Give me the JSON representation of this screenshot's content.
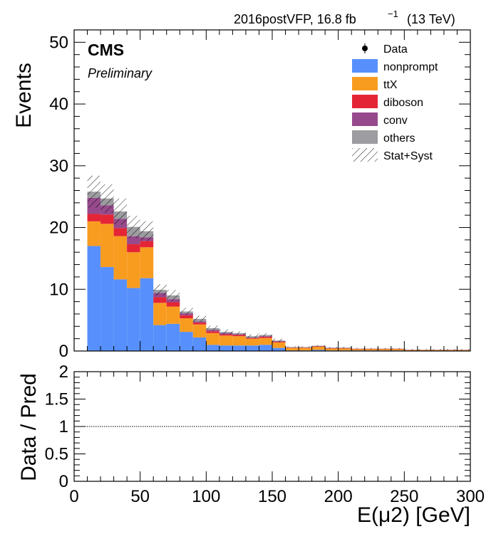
{
  "header": {
    "lumi_label": "2016postVFP, 16.8 fb",
    "lumi_exp": "−1",
    "energy_label": "(13 TeV)"
  },
  "cms_label": "CMS",
  "cms_sublabel": "Preliminary",
  "colors": {
    "nonprompt": "#5790fc",
    "ttX": "#f89c20",
    "diboson": "#e42536",
    "conv": "#964a8b",
    "others": "#9c9ca1"
  },
  "legend": [
    {
      "key": "data",
      "label": "Data",
      "style": "marker"
    },
    {
      "key": "nonprompt",
      "label": "nonprompt",
      "style": "fill"
    },
    {
      "key": "ttX",
      "label": "ttX",
      "style": "fill"
    },
    {
      "key": "diboson",
      "label": "diboson",
      "style": "fill"
    },
    {
      "key": "conv",
      "label": "conv",
      "style": "fill"
    },
    {
      "key": "others",
      "label": "others",
      "style": "fill"
    },
    {
      "key": "unc",
      "label": "Stat+Syst",
      "style": "hatch"
    }
  ],
  "chart_data": [
    {
      "type": "bar",
      "stacked": true,
      "ylabel": "Events",
      "xlim": [
        0,
        300
      ],
      "ylim": [
        0,
        52
      ],
      "y_ticks": [
        0,
        10,
        20,
        30,
        40,
        50
      ],
      "x_ticks": [
        0,
        50,
        100,
        150,
        200,
        250,
        300
      ],
      "x_tick_labels_shown": false,
      "bin_edges": [
        10,
        20,
        30,
        40,
        50,
        60,
        70,
        80,
        90,
        100,
        110,
        120,
        130,
        140,
        150,
        160,
        170,
        180,
        190,
        200,
        210,
        220,
        230,
        240,
        250,
        260,
        270,
        280,
        290,
        300
      ],
      "series": [
        {
          "name": "nonprompt",
          "values": [
            17.0,
            13.6,
            11.6,
            10.2,
            11.8,
            4.2,
            4.4,
            3.1,
            2.2,
            1.0,
            0.9,
            0.9,
            0.9,
            1.0,
            0.5,
            0.1,
            0.1,
            0.2,
            0.1,
            0.1,
            0.1,
            0.1,
            0.1,
            0.1,
            0.05,
            0.05,
            0.05,
            0.05,
            0.05
          ]
        },
        {
          "name": "ttX",
          "values": [
            4.0,
            7.0,
            7.0,
            5.8,
            5.0,
            3.6,
            2.8,
            2.2,
            2.1,
            1.9,
            1.6,
            1.5,
            1.1,
            1.1,
            0.9,
            0.4,
            0.4,
            0.5,
            0.3,
            0.3,
            0.2,
            0.2,
            0.2,
            0.2,
            0.1,
            0.1,
            0.1,
            0.1,
            0.1
          ]
        },
        {
          "name": "diboson",
          "values": [
            1.2,
            1.5,
            1.3,
            1.3,
            1.0,
            0.9,
            0.7,
            0.5,
            0.3,
            0.3,
            0.2,
            0.2,
            0.1,
            0.2,
            0.1,
            0.05,
            0.05,
            0.05,
            0.05,
            0.05,
            0.05,
            0.05,
            0.05,
            0.05,
            0.02,
            0.02,
            0.02,
            0.02,
            0.02
          ]
        },
        {
          "name": "conv",
          "values": [
            2.6,
            1.5,
            1.5,
            1.3,
            0.6,
            0.7,
            0.5,
            0.3,
            0.2,
            0.2,
            0.2,
            0.1,
            0.1,
            0.1,
            0.1,
            0.05,
            0.05,
            0.05,
            0.05,
            0.05,
            0.02,
            0.02,
            0.02,
            0.02,
            0.02,
            0.02,
            0.02,
            0.02,
            0.02
          ]
        },
        {
          "name": "others",
          "values": [
            1.0,
            1.1,
            1.2,
            1.5,
            1.0,
            0.5,
            0.6,
            0.3,
            0.4,
            0.3,
            0.2,
            0.2,
            0.2,
            0.2,
            0.1,
            0.05,
            0.05,
            0.05,
            0.05,
            0.05,
            0.03,
            0.03,
            0.03,
            0.03,
            0.03,
            0.03,
            0.03,
            0.03,
            0.03
          ]
        }
      ],
      "stat_syst_uncertainty": [
        2.6,
        2.3,
        2.1,
        1.8,
        1.6,
        0.9,
        0.9,
        0.6,
        0.5,
        0.4,
        0.4,
        0.3,
        0.3,
        0.3,
        0.3,
        0.1,
        0.1,
        0.1,
        0.1,
        0.1,
        0.1,
        0.1,
        0.1,
        0.1,
        0.1,
        0.1,
        0.1,
        0.1,
        0.1
      ]
    },
    {
      "type": "line",
      "ylabel": "Data / Pred",
      "xlabel": "E(μ2) [GeV]",
      "xlim": [
        0,
        300
      ],
      "ylim": [
        0,
        2
      ],
      "y_ticks": [
        0,
        0.5,
        1,
        1.5,
        2
      ],
      "y_tick_labels": [
        "0",
        "0.5",
        "1",
        "1.5",
        "2"
      ],
      "x_ticks": [
        0,
        50,
        100,
        150,
        200,
        250,
        300
      ],
      "x_tick_labels": [
        "0",
        "50",
        "100",
        "150",
        "200",
        "250",
        "300"
      ],
      "reference_line": 1
    }
  ]
}
